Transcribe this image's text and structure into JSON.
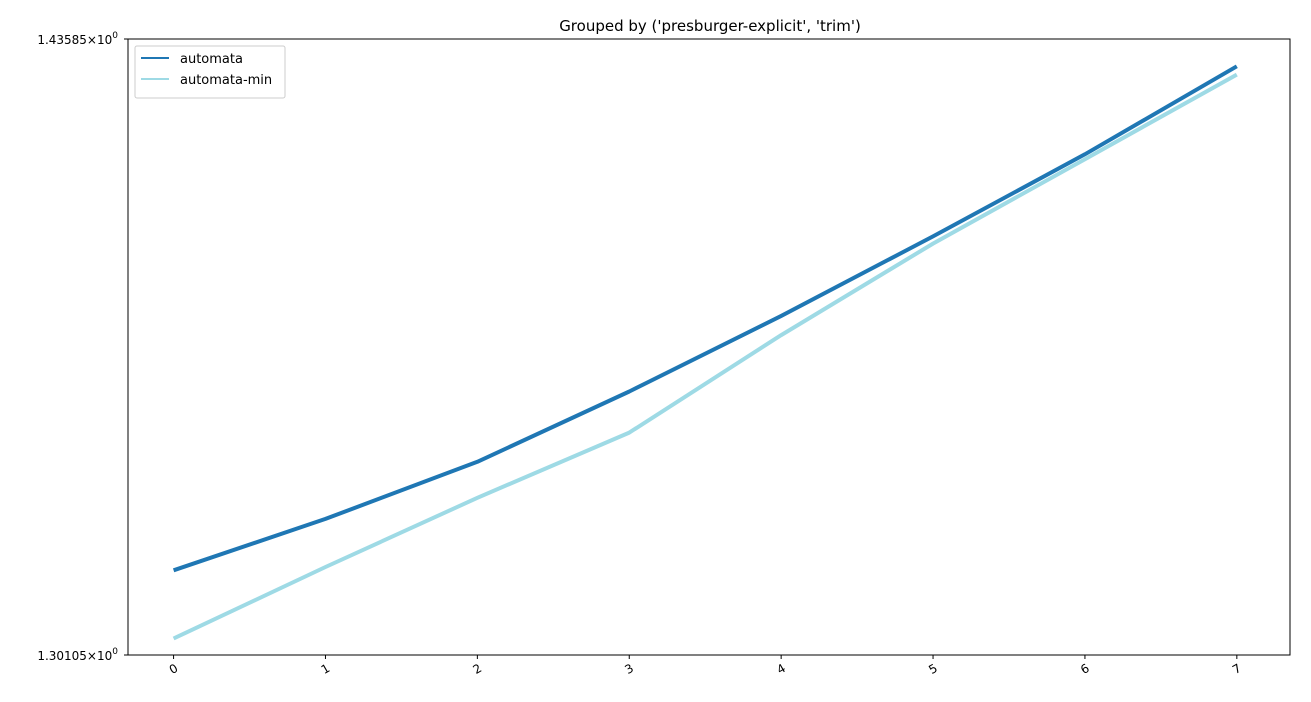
{
  "chart_data": {
    "type": "line",
    "title": "Grouped by ('presburger-explicit', 'trim')",
    "xlabel": "",
    "ylabel": "",
    "yscale": "log",
    "x": [
      0,
      1,
      2,
      3,
      4,
      5,
      6,
      7
    ],
    "xlim": [
      -0.3,
      7.35
    ],
    "ylim": [
      1.30105,
      1.43585
    ],
    "y_tick_labels": [
      {
        "value": 1.43585,
        "mantissa": "1.43585",
        "times": "×",
        "base": "10",
        "exp": "0"
      },
      {
        "value": 1.30105,
        "mantissa": "1.30105",
        "times": "×",
        "base": "10",
        "exp": "0"
      }
    ],
    "legend_position": "top-left",
    "grid": false,
    "series": [
      {
        "name": "automata",
        "color": "#1f77b4",
        "values": [
          1.3188,
          1.3297,
          1.3419,
          1.3571,
          1.3736,
          1.3912,
          1.4096,
          1.4296
        ]
      },
      {
        "name": "automata-min",
        "color": "#9edae5",
        "values": [
          1.3045,
          1.3195,
          1.3342,
          1.3482,
          1.3694,
          1.3896,
          1.4085,
          1.4277
        ]
      }
    ]
  }
}
